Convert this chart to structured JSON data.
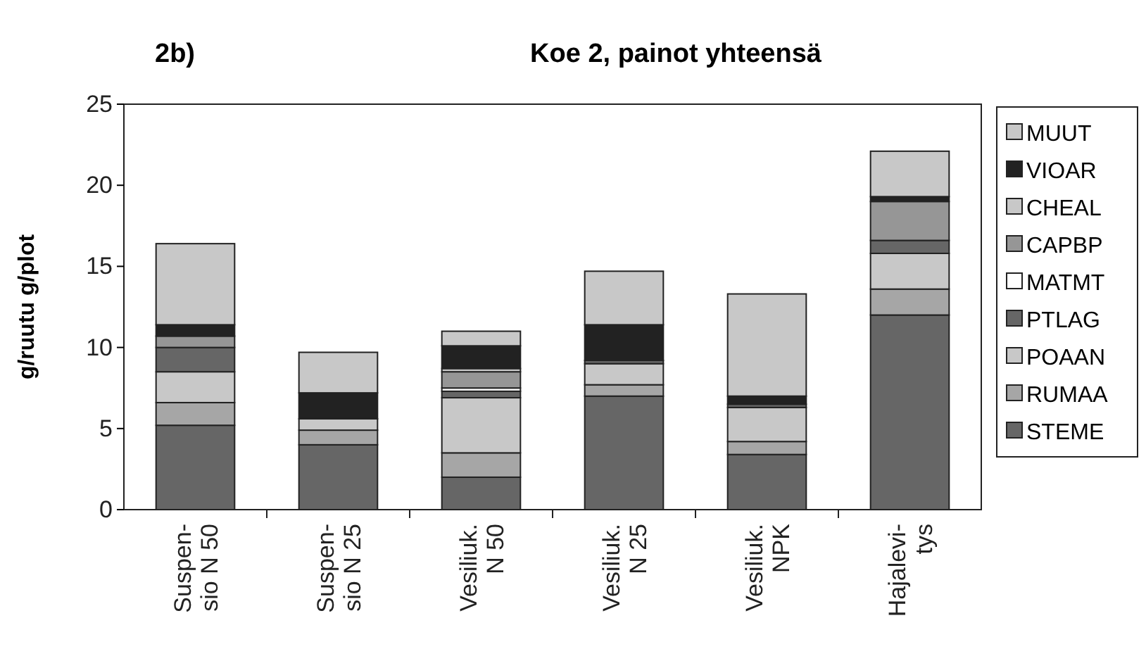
{
  "chart_data": {
    "type": "bar",
    "title": "Koe 2, painot yhteensä",
    "annotations": [
      "2b)"
    ],
    "ylabel": "g/ruutu g/plot",
    "categories": [
      "Suspen-\nsio N 50",
      "Suspen-\nsio N 25",
      "Vesiliuk.\nN 50",
      "Vesiliuk.\nN 25",
      "Vesiliuk.\nNPK",
      "Hajalevi-\ntys"
    ],
    "stacked": true,
    "ylim": [
      0,
      25
    ],
    "yticks": [
      0,
      5,
      10,
      15,
      20,
      25
    ],
    "grid": false,
    "legend": "right",
    "series": [
      {
        "name": "STEME",
        "color": "#666666",
        "values": [
          5.2,
          4.0,
          2.0,
          7.0,
          3.4,
          12.0
        ]
      },
      {
        "name": "RUMAA",
        "color": "#a6a6a6",
        "values": [
          1.4,
          0.9,
          1.5,
          0.7,
          0.8,
          1.6
        ]
      },
      {
        "name": "POAAN",
        "color": "#c8c8c8",
        "values": [
          1.9,
          0.7,
          3.4,
          1.3,
          2.1,
          2.2
        ]
      },
      {
        "name": "PTLAG",
        "color": "#666666",
        "values": [
          1.5,
          0,
          0.4,
          0.2,
          0.2,
          0.8
        ]
      },
      {
        "name": "MATMT",
        "color": "#ffffff",
        "values": [
          0,
          0,
          0.2,
          0,
          0,
          0
        ]
      },
      {
        "name": "CAPBP",
        "color": "#969696",
        "values": [
          0.7,
          0,
          1.0,
          0,
          0,
          2.4
        ]
      },
      {
        "name": "CHEAL",
        "color": "#c8c8c8",
        "values": [
          0,
          0,
          0.2,
          0,
          0,
          0
        ]
      },
      {
        "name": "VIOAR",
        "color": "#222222",
        "values": [
          0.7,
          1.6,
          1.4,
          2.2,
          0.5,
          0.3
        ]
      },
      {
        "name": "MUUT",
        "color": "#c8c8c8",
        "values": [
          5.0,
          2.5,
          0.9,
          3.3,
          6.3,
          2.8
        ]
      }
    ]
  }
}
